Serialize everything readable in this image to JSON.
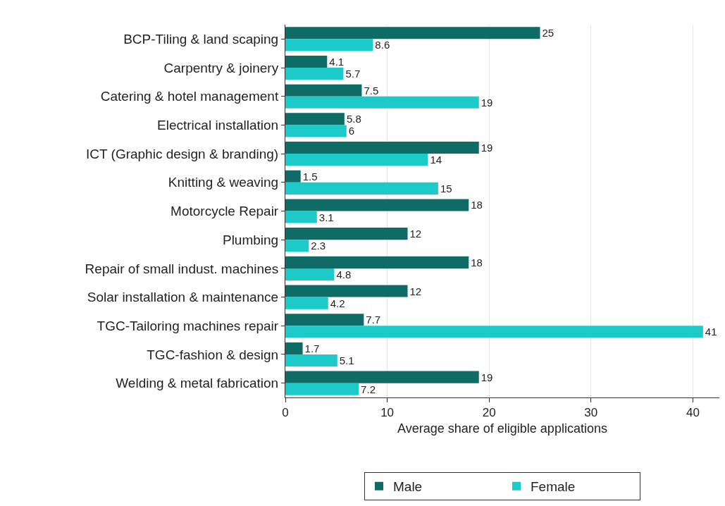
{
  "chart_data": {
    "type": "bar",
    "orientation": "horizontal",
    "xlabel": "Average share of eligible applications",
    "categories": [
      "BCP-Tiling & land scaping",
      "Carpentry & joinery",
      "Catering & hotel management",
      "Electrical installation",
      "ICT (Graphic design & branding)",
      "Knitting & weaving",
      "Motorcycle Repair",
      "Plumbing",
      "Repair of small indust. machines",
      "Solar installation & maintenance",
      "TGC-Tailoring machines repair",
      "TGC-fashion & design",
      "Welding & metal fabrication"
    ],
    "series": [
      {
        "name": "Male",
        "color": "#0f6b66",
        "values": [
          25,
          4.1,
          7.5,
          5.8,
          19,
          1.5,
          18,
          12,
          18,
          12,
          7.7,
          1.7,
          19
        ]
      },
      {
        "name": "Female",
        "color": "#1ccaca",
        "values": [
          8.6,
          5.7,
          19,
          6,
          14,
          15,
          3.1,
          2.3,
          4.8,
          4.2,
          41,
          5.1,
          7.2
        ]
      }
    ],
    "xlim": [
      0,
      42.6
    ],
    "xticks": [
      0,
      10,
      20,
      30,
      40
    ],
    "grid": "x",
    "legend": "bottom",
    "data_labels": true
  }
}
